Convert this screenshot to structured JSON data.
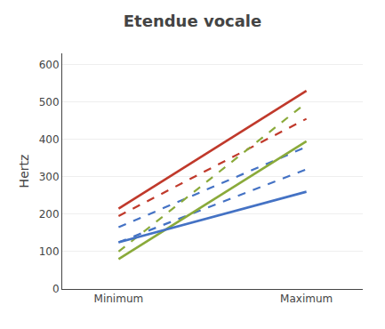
{
  "chart_data": {
    "type": "line",
    "title": "Etendue vocale",
    "categories": [
      "Minimum",
      "Maximum"
    ],
    "ylabel": "Hertz",
    "ylim": [
      0,
      630
    ],
    "yticks": [
      0,
      100,
      200,
      300,
      400,
      500,
      600
    ],
    "grid": true,
    "series": [
      {
        "color": "#C0392B",
        "line_style": "solid",
        "values": [
          215,
          530
        ]
      },
      {
        "color": "#C0392B",
        "line_style": "dashed",
        "values": [
          195,
          455
        ]
      },
      {
        "color": "#4472C4",
        "line_style": "dashed",
        "values": [
          165,
          380
        ]
      },
      {
        "color": "#4472C4",
        "line_style": "dashed",
        "values": [
          125,
          320
        ]
      },
      {
        "color": "#8AAA3A",
        "line_style": "solid",
        "values": [
          80,
          395
        ]
      },
      {
        "color": "#8AAA3A",
        "line_style": "dashed",
        "values": [
          100,
          498
        ]
      },
      {
        "color": "#4472C4",
        "line_style": "solid",
        "values": [
          125,
          260
        ]
      }
    ]
  }
}
